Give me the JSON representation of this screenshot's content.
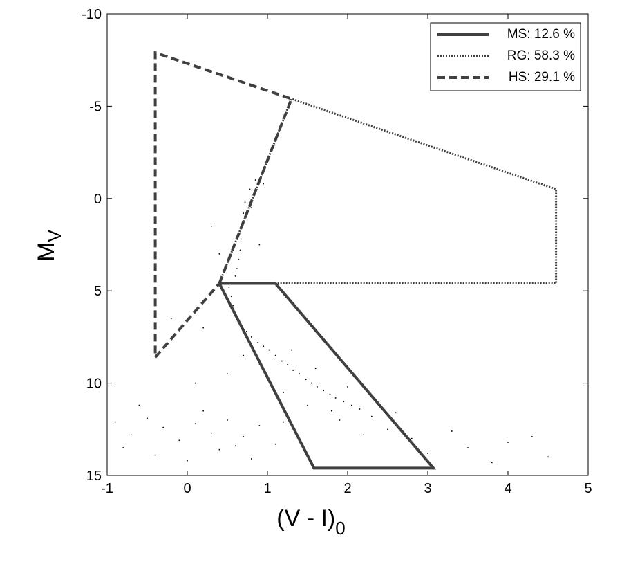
{
  "chart_data": {
    "type": "scatter",
    "xlabel": {
      "main": "(V - I)",
      "sub": "0"
    },
    "ylabel": {
      "main": "M",
      "sub": "V"
    },
    "xlim": [
      -1,
      5
    ],
    "xticks": [
      -1,
      0,
      1,
      2,
      3,
      4,
      5
    ],
    "ylim": [
      15,
      -10
    ],
    "yticks": [
      -10,
      -5,
      0,
      5,
      10,
      15
    ],
    "legend": "upper right",
    "points": {
      "color": "#000000",
      "x": [
        0.52,
        0.55,
        0.57,
        0.6,
        0.63,
        0.68,
        0.74,
        0.8,
        0.88,
        0.95,
        1.02,
        1.1,
        1.18,
        1.25,
        1.32,
        1.4,
        1.48,
        1.55,
        1.62,
        1.7,
        1.78,
        1.85,
        1.95,
        2.05,
        2.15,
        0.6,
        0.62,
        0.64,
        0.66,
        0.67,
        0.68,
        0.7,
        0.72,
        0.78,
        0.85,
        0.9,
        1.3,
        1.6,
        2.0,
        2.3,
        1.8,
        2.5,
        2.8,
        1.2,
        1.5,
        2.6,
        0.7,
        1.0,
        3.0,
        2.2,
        1.9,
        -0.9,
        -0.7,
        -0.5,
        -0.3,
        -0.1,
        0.1,
        0.3,
        0.5,
        0.7,
        0.9,
        1.1,
        -0.8,
        -0.4,
        0.0,
        0.4,
        0.8,
        1.2,
        -0.6,
        0.2,
        0.6,
        3.5,
        4.0,
        4.5,
        3.8,
        3.3,
        4.3,
        0.2,
        -0.2,
        0.4,
        0.3,
        0.9,
        0.5,
        0.1,
        0.8,
        0.95
      ],
      "y": [
        4.8,
        5.3,
        5.8,
        6.2,
        6.6,
        6.9,
        7.2,
        7.5,
        7.8,
        8.0,
        8.2,
        8.5,
        8.8,
        9.0,
        9.3,
        9.5,
        9.8,
        10.0,
        10.2,
        10.4,
        10.6,
        10.8,
        11.0,
        11.2,
        11.4,
        4.2,
        3.8,
        3.3,
        2.8,
        2.2,
        1.5,
        0.8,
        0.2,
        -0.5,
        -1.0,
        9.0,
        8.2,
        9.2,
        10.2,
        11.8,
        11.5,
        12.5,
        13.0,
        10.5,
        11.2,
        11.6,
        8.5,
        9.6,
        13.8,
        12.8,
        12.0,
        12.1,
        12.8,
        11.9,
        12.4,
        13.1,
        12.2,
        12.7,
        12.0,
        12.9,
        12.3,
        13.3,
        13.5,
        13.9,
        14.2,
        13.6,
        14.1,
        12.1,
        11.2,
        11.5,
        13.4,
        13.5,
        13.2,
        14.0,
        14.3,
        12.6,
        12.9,
        7.0,
        6.5,
        3.0,
        1.5,
        2.5,
        9.5,
        10.0,
        0.5,
        -0.8
      ]
    },
    "series": [
      {
        "name": "MS: 12.6 %",
        "color": "#404040",
        "style": "solid",
        "x": [
          0.4,
          1.1,
          3.07,
          1.58,
          0.4
        ],
        "y": [
          4.6,
          4.6,
          14.6,
          14.6,
          4.6
        ]
      },
      {
        "name": "RG: 58.3 %",
        "color": "#404040",
        "style": "dotted",
        "x": [
          0.4,
          1.3,
          4.6,
          4.6,
          0.4
        ],
        "y": [
          4.6,
          -5.4,
          -0.5,
          4.6,
          4.6
        ]
      },
      {
        "name": "HS: 29.1 %",
        "color": "#404040",
        "style": "dashed",
        "x": [
          0.4,
          1.3,
          -0.4,
          -0.4,
          0.4
        ],
        "y": [
          4.6,
          -5.4,
          -7.9,
          8.6,
          4.6
        ]
      }
    ]
  }
}
